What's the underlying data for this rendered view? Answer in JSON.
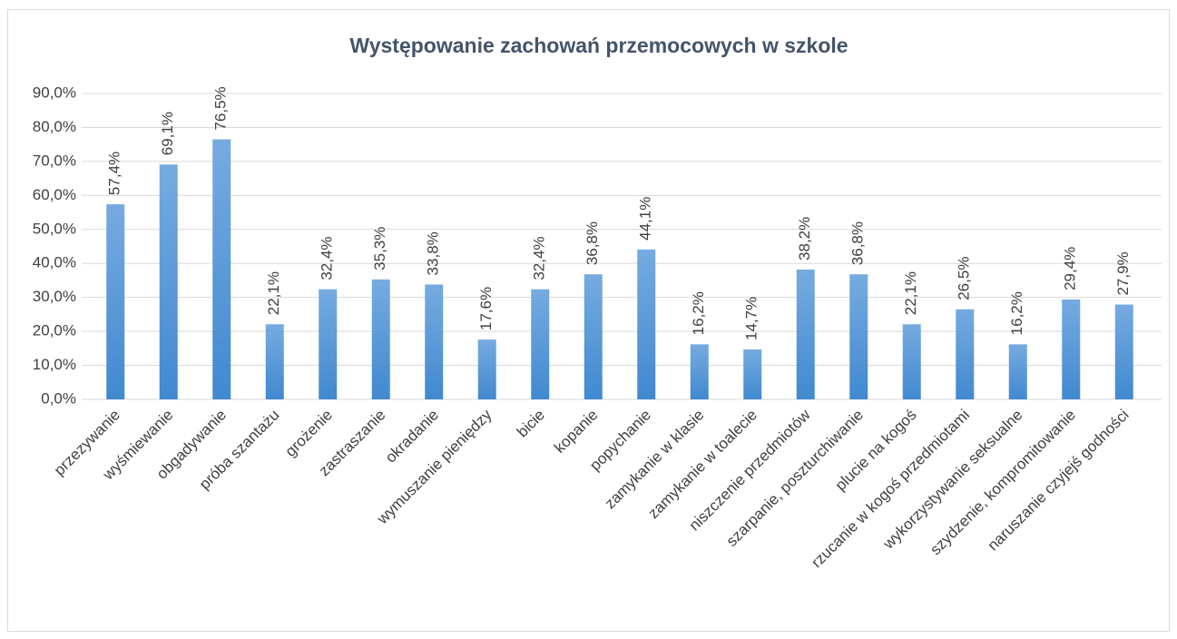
{
  "chart_data": {
    "type": "bar",
    "title": "Występowanie zachowań przemocowych w szkole",
    "categories": [
      "przezywanie",
      "wyśmiewanie",
      "obgadywanie",
      "próba szantażu",
      "grożenie",
      "zastraszanie",
      "okradanie",
      "wymuszanie pieniędzy",
      "bicie",
      "kopanie",
      "popychanie",
      "zamykanie w klasie",
      "zamykanie w toalecie",
      "niszczenie przedmiotów",
      "szarpanie, poszturchiwanie",
      "plucie na kogoś",
      "rzucanie w kogoś przedmiotami",
      "wykorzystywanie seksualne",
      "szydzenie, kompromitowanie",
      "naruszanie czyjejś godności"
    ],
    "values": [
      57.4,
      69.1,
      76.5,
      22.1,
      32.4,
      35.3,
      33.8,
      17.6,
      32.4,
      36.8,
      44.1,
      16.2,
      14.7,
      38.2,
      36.8,
      22.1,
      26.5,
      16.2,
      29.4,
      27.9
    ],
    "value_labels": [
      "57,4%",
      "69,1%",
      "76,5%",
      "22,1%",
      "32,4%",
      "35,3%",
      "33,8%",
      "17,6%",
      "32,4%",
      "36,8%",
      "44,1%",
      "16,2%",
      "14,7%",
      "38,2%",
      "36,8%",
      "22,1%",
      "26,5%",
      "16,2%",
      "29,4%",
      "27,9%"
    ],
    "color": "#5b9bd5",
    "ylim": [
      0,
      90
    ],
    "yticks": [
      {
        "value": 0,
        "label": "0,0%"
      },
      {
        "value": 10,
        "label": "10,0%"
      },
      {
        "value": 20,
        "label": "20,0%"
      },
      {
        "value": 30,
        "label": "30,0%"
      },
      {
        "value": 40,
        "label": "40,0%"
      },
      {
        "value": 50,
        "label": "50,0%"
      },
      {
        "value": 60,
        "label": "60,0%"
      },
      {
        "value": 70,
        "label": "70,0%"
      },
      {
        "value": 80,
        "label": "80,0%"
      },
      {
        "value": 90,
        "label": "90,0%"
      }
    ],
    "grid": true
  }
}
